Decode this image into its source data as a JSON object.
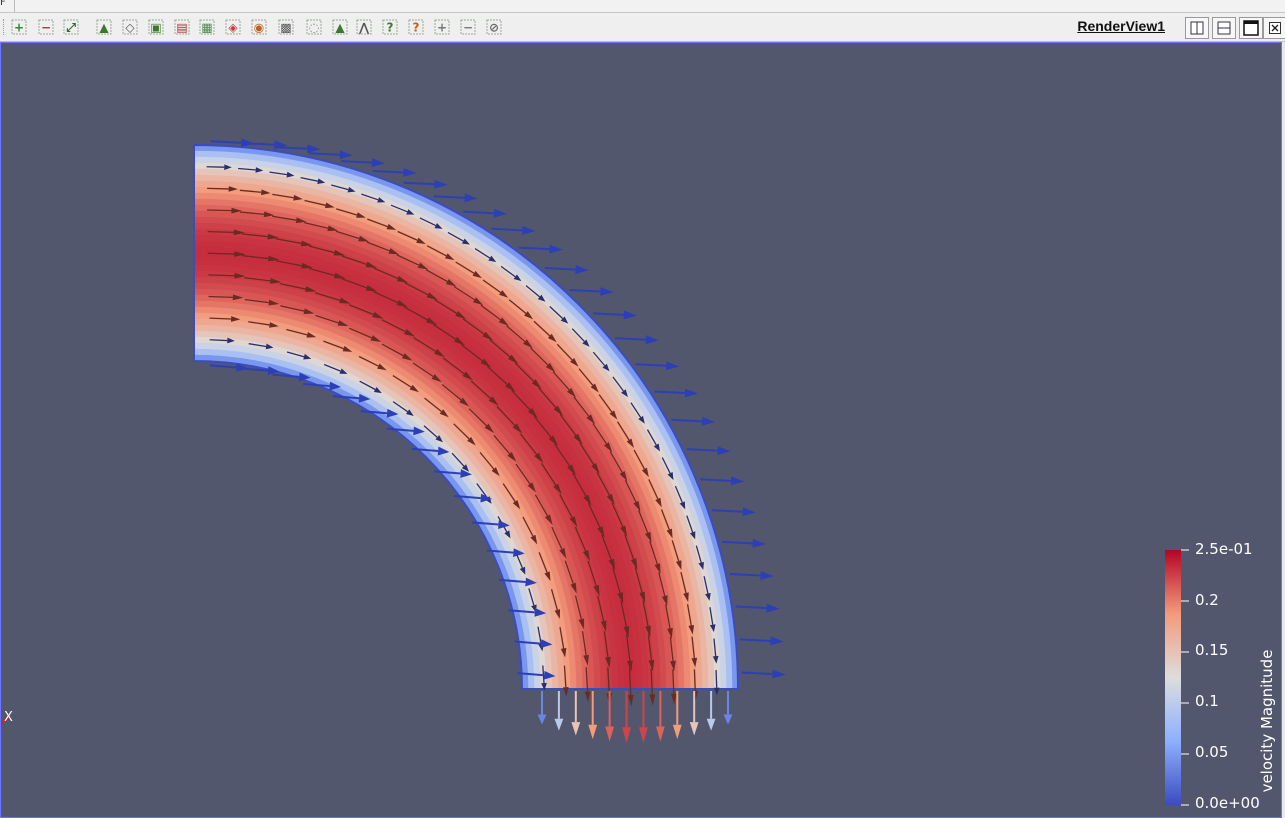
{
  "menu": {
    "partial_label": "F"
  },
  "toolbar": {
    "buttons": [
      {
        "name": "zoom-in-icon"
      },
      {
        "name": "zoom-out-icon"
      },
      {
        "name": "reset-camera-icon"
      },
      {
        "name": "select-cells-on-icon"
      },
      {
        "name": "select-points-on-icon"
      },
      {
        "name": "select-cells-frustum-icon"
      },
      {
        "name": "select-points-frustum-icon"
      },
      {
        "name": "select-block-icon"
      },
      {
        "name": "interactive-select-cells-icon"
      },
      {
        "name": "interactive-select-points-icon"
      },
      {
        "name": "clear-selection-icon"
      },
      {
        "name": "grow-selection-icon"
      },
      {
        "name": "hover-cells-icon"
      },
      {
        "name": "hover-points-icon"
      },
      {
        "name": "query-cell-icon"
      },
      {
        "name": "query-point-icon"
      },
      {
        "name": "add-icon"
      },
      {
        "name": "remove-icon"
      },
      {
        "name": "disable-icon"
      }
    ]
  },
  "view": {
    "title": "RenderView1",
    "window_buttons": [
      "split-horizontal-icon",
      "split-vertical-icon",
      "maximize-icon",
      "close-icon"
    ]
  },
  "scene": {
    "background": "#52576e",
    "axes_label": "X",
    "colormap": [
      "#3b4cc0",
      "#8db0fe",
      "#dddddd",
      "#f49a7b",
      "#b40426"
    ]
  },
  "colorbar": {
    "title": "velocity Magnitude",
    "ticks": [
      "2.5e-01",
      "0.2",
      "0.15",
      "0.1",
      "0.05",
      "0.0e+00"
    ],
    "range": [
      0,
      0.25
    ]
  }
}
